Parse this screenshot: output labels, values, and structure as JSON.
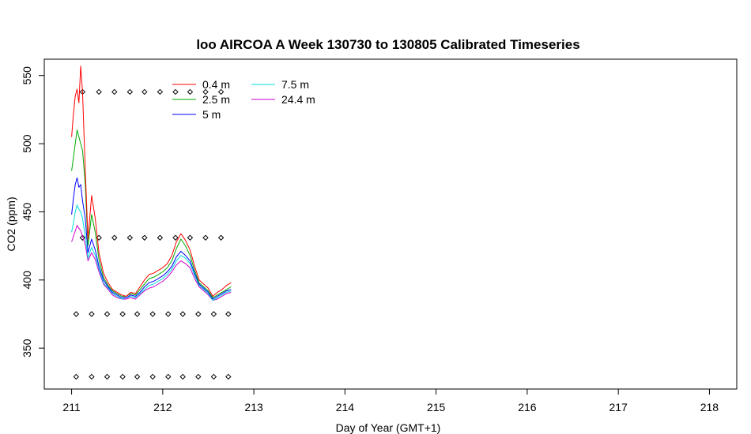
{
  "chart_data": {
    "type": "line",
    "title": "loo AIRCOA A  Week 130730 to 130805  Calibrated Timeseries",
    "xlabel": "Day of Year (GMT+1)",
    "ylabel": "CO2 (ppm)",
    "xlim": [
      210.7,
      218.3
    ],
    "ylim": [
      320,
      562
    ],
    "x_ticks": [
      211,
      212,
      213,
      214,
      215,
      216,
      217,
      218
    ],
    "y_ticks": [
      350,
      400,
      450,
      500,
      550
    ],
    "legend_position": "top-left",
    "x": [
      211.0,
      211.02,
      211.04,
      211.06,
      211.08,
      211.1,
      211.12,
      211.15,
      211.18,
      211.22,
      211.26,
      211.3,
      211.35,
      211.4,
      211.45,
      211.5,
      211.55,
      211.6,
      211.65,
      211.7,
      211.75,
      211.8,
      211.85,
      211.9,
      211.95,
      212.0,
      212.05,
      212.1,
      212.15,
      212.2,
      212.25,
      212.3,
      212.35,
      212.4,
      212.45,
      212.5,
      212.55,
      212.6,
      212.65,
      212.7,
      212.75
    ],
    "series": [
      {
        "name": "0.4 m",
        "color": "#ff0000",
        "values": [
          505,
          522,
          535,
          540,
          530,
          557,
          538,
          480,
          430,
          462,
          445,
          420,
          405,
          398,
          393,
          391,
          389,
          388,
          391,
          390,
          395,
          400,
          404,
          405,
          407,
          409,
          412,
          418,
          428,
          434,
          429,
          422,
          410,
          400,
          397,
          394,
          388,
          391,
          393,
          396,
          398
        ]
      },
      {
        "name": "2.5 m",
        "color": "#00aa00",
        "values": [
          480,
          490,
          500,
          510,
          505,
          500,
          495,
          470,
          425,
          448,
          435,
          415,
          402,
          396,
          392,
          390,
          388,
          388,
          390,
          389,
          393,
          397,
          401,
          402,
          404,
          406,
          409,
          414,
          423,
          430,
          425,
          418,
          407,
          398,
          395,
          392,
          387,
          389,
          391,
          393,
          395
        ]
      },
      {
        "name": "5 m",
        "color": "#0000ff",
        "values": [
          448,
          460,
          470,
          475,
          468,
          470,
          458,
          445,
          420,
          430,
          422,
          410,
          400,
          395,
          391,
          389,
          387,
          387,
          389,
          388,
          391,
          395,
          398,
          399,
          401,
          403,
          406,
          410,
          417,
          421,
          418,
          414,
          405,
          397,
          394,
          391,
          386,
          388,
          390,
          392,
          393
        ]
      },
      {
        "name": "7.5 m",
        "color": "#00dddd",
        "values": [
          435,
          442,
          450,
          455,
          452,
          450,
          445,
          432,
          416,
          424,
          418,
          408,
          398,
          394,
          390,
          388,
          386,
          387,
          388,
          387,
          390,
          393,
          396,
          397,
          399,
          401,
          404,
          408,
          414,
          418,
          416,
          412,
          403,
          396,
          393,
          390,
          385,
          387,
          389,
          391,
          392
        ]
      },
      {
        "name": "24.4 m",
        "color": "#cc00cc",
        "values": [
          428,
          432,
          436,
          440,
          438,
          436,
          432,
          426,
          414,
          420,
          415,
          406,
          397,
          393,
          389,
          387,
          386,
          386,
          387,
          386,
          389,
          392,
          394,
          395,
          397,
          399,
          402,
          406,
          411,
          414,
          412,
          409,
          401,
          395,
          392,
          389,
          385,
          386,
          388,
          390,
          391
        ]
      }
    ],
    "markers": [
      {
        "y": 538,
        "x": [
          211.12,
          211.3,
          211.47,
          211.64,
          211.8,
          211.97,
          212.14,
          212.3,
          212.47,
          212.64
        ]
      },
      {
        "y": 431,
        "x": [
          211.12,
          211.3,
          211.47,
          211.64,
          211.8,
          211.97,
          212.14,
          212.3,
          212.47,
          212.64
        ]
      },
      {
        "y": 375,
        "x": [
          211.05,
          211.22,
          211.39,
          211.56,
          211.72,
          211.89,
          212.06,
          212.22,
          212.39,
          212.56,
          212.72
        ]
      },
      {
        "y": 329,
        "x": [
          211.05,
          211.22,
          211.39,
          211.56,
          211.72,
          211.89,
          212.06,
          212.22,
          212.39,
          212.56,
          212.72
        ]
      }
    ]
  }
}
